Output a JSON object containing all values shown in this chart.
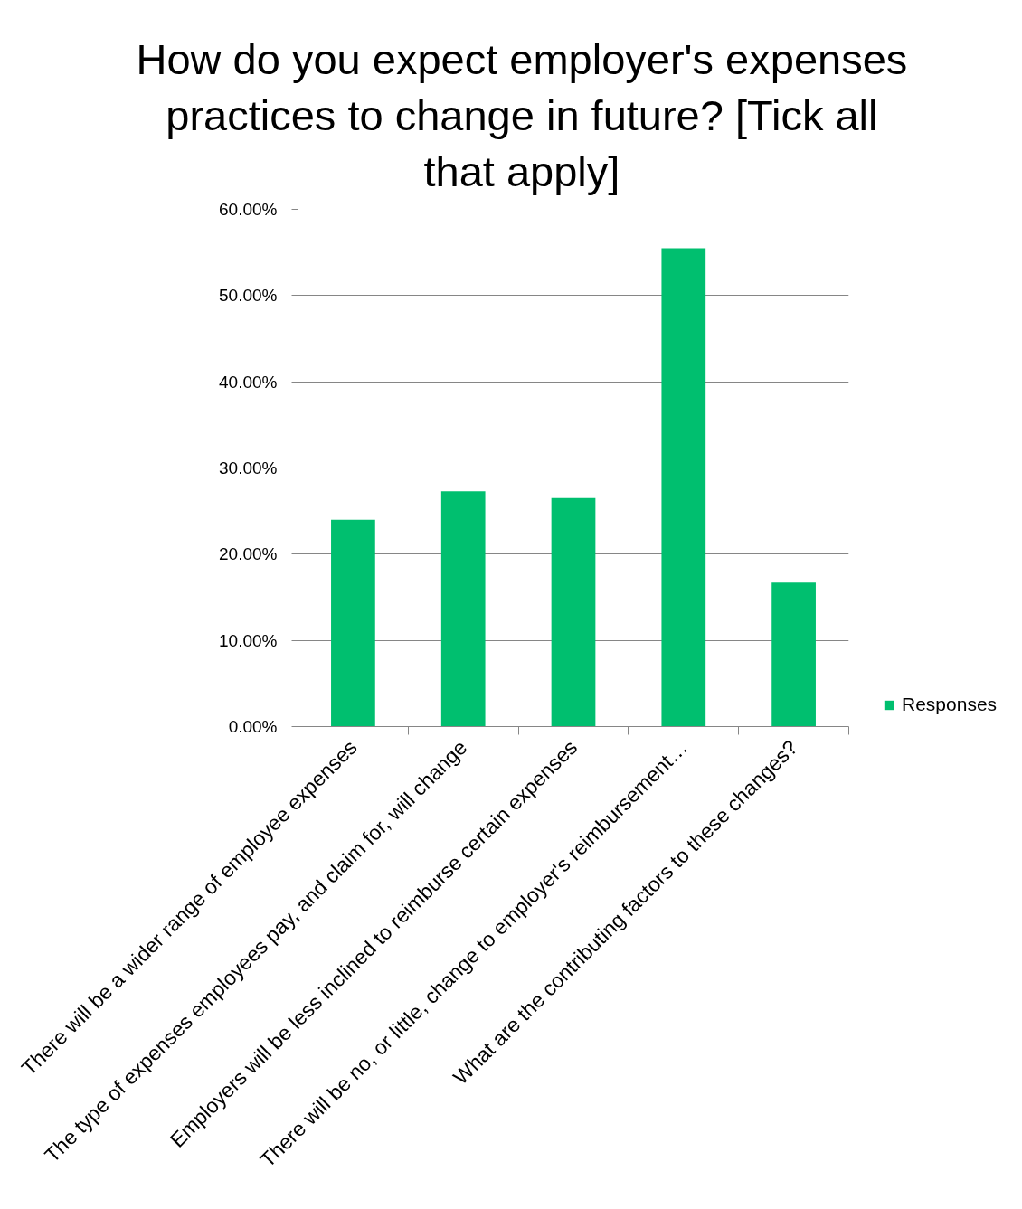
{
  "chart_data": {
    "type": "bar",
    "title": "How do you expect employer's expenses practices to change in future? [Tick all that apply]",
    "categories": [
      "There will be a wider range of employee expenses",
      "The type of expenses employees pay, and claim for, will change",
      "Employers will be less inclined to reimburse certain expenses",
      "There will be no, or little, change to employer's reimbursement…",
      "What are the contributing factors to these changes?"
    ],
    "series": [
      {
        "name": "Responses",
        "color": "#00bf6f",
        "values": [
          24.0,
          27.3,
          26.5,
          55.5,
          16.7
        ]
      }
    ],
    "ylim": [
      0,
      60
    ],
    "yticks": [
      {
        "value": 0,
        "label": "0.00%"
      },
      {
        "value": 10,
        "label": "10.00%"
      },
      {
        "value": 20,
        "label": "20.00%"
      },
      {
        "value": 30,
        "label": "30.00%"
      },
      {
        "value": 40,
        "label": "40.00%"
      },
      {
        "value": 50,
        "label": "50.00%"
      },
      {
        "value": 60,
        "label": "60.00%"
      }
    ],
    "grid": "y",
    "legend": "right"
  }
}
